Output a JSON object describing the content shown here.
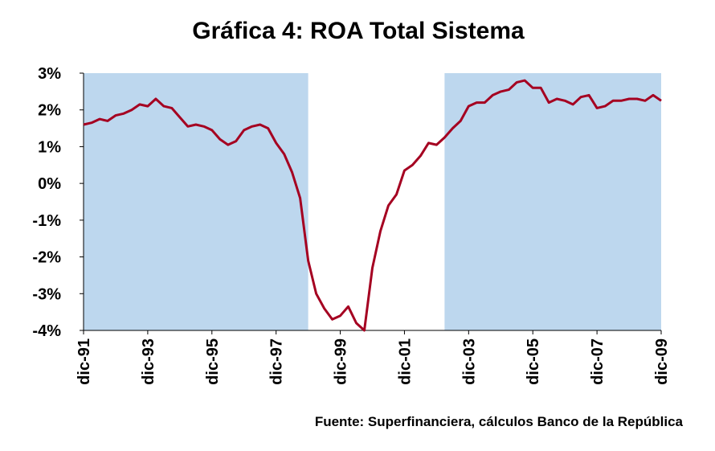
{
  "chart_data": {
    "type": "line",
    "title": "Gráfica 4: ROA Total Sistema",
    "source": "Fuente: Superfinanciera, cálculos Banco de la República",
    "categories": [
      "dic-91",
      null,
      null,
      null,
      null,
      null,
      null,
      null,
      "dic-93",
      null,
      null,
      null,
      null,
      null,
      null,
      null,
      "dic-95",
      null,
      null,
      null,
      null,
      null,
      null,
      null,
      "dic-97",
      null,
      null,
      null,
      null,
      null,
      null,
      null,
      "dic-99",
      null,
      null,
      null,
      null,
      null,
      null,
      null,
      "dic-01",
      null,
      null,
      null,
      null,
      null,
      null,
      null,
      "dic-03",
      null,
      null,
      null,
      null,
      null,
      null,
      null,
      "dic-05",
      null,
      null,
      null,
      null,
      null,
      null,
      null,
      "dic-07",
      null,
      null,
      null,
      null,
      null,
      null,
      null,
      "dic-09"
    ],
    "series": [
      {
        "color": "#a50021",
        "values": [
          1.6,
          1.65,
          1.75,
          1.7,
          1.85,
          1.9,
          2.0,
          2.15,
          2.1,
          2.3,
          2.1,
          2.05,
          1.8,
          1.55,
          1.6,
          1.55,
          1.45,
          1.2,
          1.05,
          1.15,
          1.45,
          1.55,
          1.6,
          1.5,
          1.1,
          0.8,
          0.3,
          -0.4,
          -2.1,
          -3.0,
          -3.4,
          -3.7,
          -3.6,
          -3.35,
          -3.8,
          -4.0,
          -2.3,
          -1.3,
          -0.6,
          -0.3,
          0.35,
          0.5,
          0.75,
          1.1,
          1.05,
          1.25,
          1.5,
          1.7,
          2.1,
          2.2,
          2.2,
          2.4,
          2.5,
          2.55,
          2.75,
          2.8,
          2.6,
          2.6,
          2.2,
          2.3,
          2.25,
          2.15,
          2.35,
          2.4,
          2.05,
          2.1,
          2.25,
          2.25,
          2.3,
          2.3,
          2.25,
          2.4,
          2.25
        ]
      }
    ],
    "shaded_ranges": [
      [
        0,
        28
      ],
      [
        45,
        72
      ]
    ],
    "shade_color": "#bdd7ee",
    "ylim": [
      -4,
      3
    ],
    "yticks": [
      {
        "value": -4,
        "label": "-4%"
      },
      {
        "value": -3,
        "label": "-3%"
      },
      {
        "value": -2,
        "label": "-2%"
      },
      {
        "value": -1,
        "label": "-1%"
      },
      {
        "value": 0,
        "label": "0%"
      },
      {
        "value": 1,
        "label": "1%"
      },
      {
        "value": 2,
        "label": "2%"
      },
      {
        "value": 3,
        "label": "3%"
      }
    ]
  }
}
